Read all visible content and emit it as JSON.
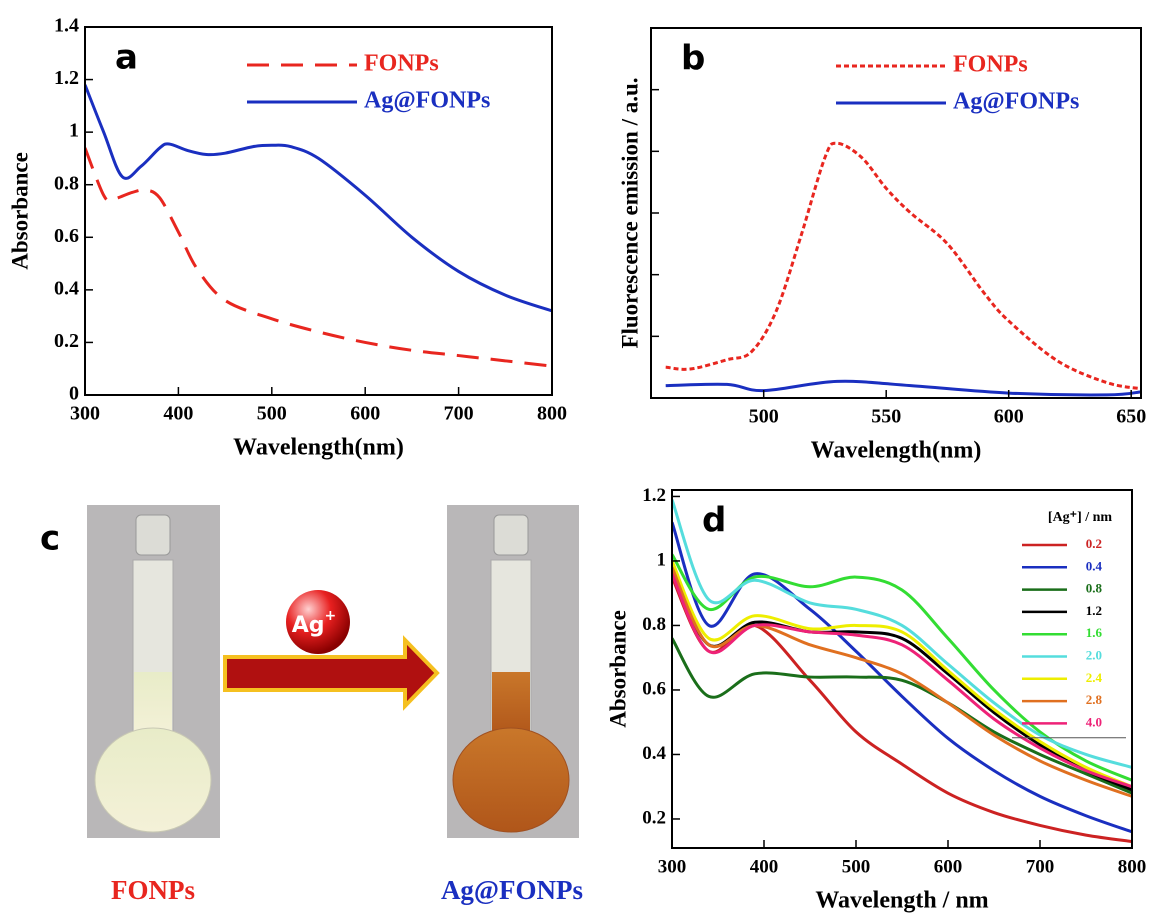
{
  "chart_data": [
    {
      "type": "line",
      "panel": "a",
      "xlabel": "Wavelength(nm)",
      "ylabel": "Absorbance",
      "xlim": [
        300,
        800
      ],
      "xticks": [
        300,
        400,
        500,
        600,
        700,
        800
      ],
      "ylim": [
        0,
        1.4
      ],
      "yticks": [
        0,
        0.2,
        0.4,
        0.6,
        0.8,
        1,
        1.2,
        1.4
      ],
      "legend": "upper right",
      "grid": false,
      "series": [
        {
          "name": "FONPs",
          "color": "#e8261f",
          "linestyle": "dashed",
          "x": [
            300,
            320,
            330,
            350,
            365,
            380,
            400,
            420,
            450,
            500,
            550,
            600,
            650,
            700,
            750,
            800
          ],
          "values": [
            0.94,
            0.76,
            0.745,
            0.77,
            0.78,
            0.75,
            0.62,
            0.48,
            0.36,
            0.29,
            0.24,
            0.2,
            0.17,
            0.15,
            0.13,
            0.11
          ]
        },
        {
          "name": "Ag@FONPs",
          "color": "#1a2fc0",
          "linestyle": "solid",
          "x": [
            300,
            320,
            340,
            360,
            380,
            390,
            410,
            430,
            450,
            480,
            500,
            520,
            550,
            600,
            650,
            700,
            750,
            800
          ],
          "values": [
            1.18,
            1.0,
            0.83,
            0.87,
            0.94,
            0.955,
            0.93,
            0.915,
            0.92,
            0.945,
            0.95,
            0.945,
            0.9,
            0.76,
            0.6,
            0.47,
            0.38,
            0.32
          ]
        }
      ]
    },
    {
      "type": "line",
      "panel": "b",
      "xlabel": "Wavelength(nm)",
      "ylabel": "Fluorescence emission / a.u.",
      "xlim": [
        454,
        654
      ],
      "xticks": [
        500,
        550,
        600,
        650
      ],
      "ylim": [
        0,
        6
      ],
      "yticks": [
        1,
        2,
        3,
        4,
        5,
        6
      ],
      "ytick_labels": false,
      "legend": "upper right",
      "grid": false,
      "series": [
        {
          "name": "FONPs",
          "color": "#e8261f",
          "linestyle": "dotted",
          "x": [
            460,
            470,
            485,
            495,
            505,
            515,
            525,
            530,
            540,
            550,
            560,
            575,
            590,
            600,
            620,
            640,
            654
          ],
          "values": [
            0.5,
            0.47,
            0.62,
            0.75,
            1.4,
            2.6,
            3.9,
            4.13,
            3.9,
            3.4,
            3.0,
            2.5,
            1.7,
            1.25,
            0.6,
            0.25,
            0.15
          ]
        },
        {
          "name": "Ag@FONPs",
          "color": "#1a2fc0",
          "linestyle": "solid",
          "x": [
            460,
            485,
            500,
            530,
            560,
            600,
            640,
            654
          ],
          "values": [
            0.2,
            0.22,
            0.12,
            0.27,
            0.2,
            0.08,
            0.05,
            0.1
          ]
        }
      ]
    },
    {
      "type": "line",
      "panel": "d",
      "xlabel": "Wavelength / nm",
      "ylabel": "Absorbance",
      "xlim": [
        300,
        800
      ],
      "xticks": [
        300,
        400,
        500,
        600,
        700,
        800
      ],
      "ylim": [
        0.11,
        1.22
      ],
      "yticks": [
        0.2,
        0.4,
        0.6,
        0.8,
        1,
        1.2
      ],
      "legend": "upper right",
      "legend_title": "[Ag⁺] / nm",
      "grid": false,
      "x": [
        300,
        340,
        390,
        450,
        500,
        550,
        600,
        650,
        700,
        750,
        800
      ],
      "series": [
        {
          "name": "0.2",
          "color": "#cc2222",
          "values": [
            0.95,
            0.72,
            0.8,
            0.63,
            0.47,
            0.37,
            0.28,
            0.22,
            0.18,
            0.15,
            0.13
          ]
        },
        {
          "name": "0.4",
          "color": "#1a2fc0",
          "values": [
            1.12,
            0.8,
            0.96,
            0.85,
            0.72,
            0.58,
            0.45,
            0.35,
            0.27,
            0.21,
            0.16
          ]
        },
        {
          "name": "0.8",
          "color": "#1a6e1a",
          "values": [
            0.76,
            0.58,
            0.65,
            0.64,
            0.64,
            0.63,
            0.56,
            0.47,
            0.4,
            0.34,
            0.28
          ]
        },
        {
          "name": "1.2",
          "color": "#000000",
          "values": [
            0.97,
            0.74,
            0.81,
            0.78,
            0.78,
            0.76,
            0.65,
            0.53,
            0.43,
            0.35,
            0.29
          ]
        },
        {
          "name": "1.6",
          "color": "#33dd33",
          "values": [
            1.02,
            0.85,
            0.95,
            0.92,
            0.95,
            0.91,
            0.76,
            0.6,
            0.47,
            0.38,
            0.32
          ]
        },
        {
          "name": "2.0",
          "color": "#55dddd",
          "values": [
            1.19,
            0.88,
            0.94,
            0.87,
            0.85,
            0.8,
            0.68,
            0.56,
            0.46,
            0.4,
            0.36
          ]
        },
        {
          "name": "2.4",
          "color": "#eeee00",
          "values": [
            1.0,
            0.76,
            0.83,
            0.79,
            0.8,
            0.78,
            0.66,
            0.54,
            0.44,
            0.36,
            0.3
          ]
        },
        {
          "name": "2.8",
          "color": "#e07020",
          "values": [
            0.98,
            0.74,
            0.8,
            0.74,
            0.7,
            0.65,
            0.56,
            0.46,
            0.38,
            0.32,
            0.27
          ]
        },
        {
          "name": "4.0",
          "color": "#ee2277",
          "values": [
            0.96,
            0.72,
            0.8,
            0.78,
            0.77,
            0.74,
            0.63,
            0.51,
            0.42,
            0.35,
            0.3
          ]
        }
      ]
    }
  ],
  "panel_c": {
    "panel": "c",
    "left_label": "FONPs",
    "right_label": "Ag@FONPs",
    "reagent": "Ag",
    "reagent_charge": "+"
  }
}
